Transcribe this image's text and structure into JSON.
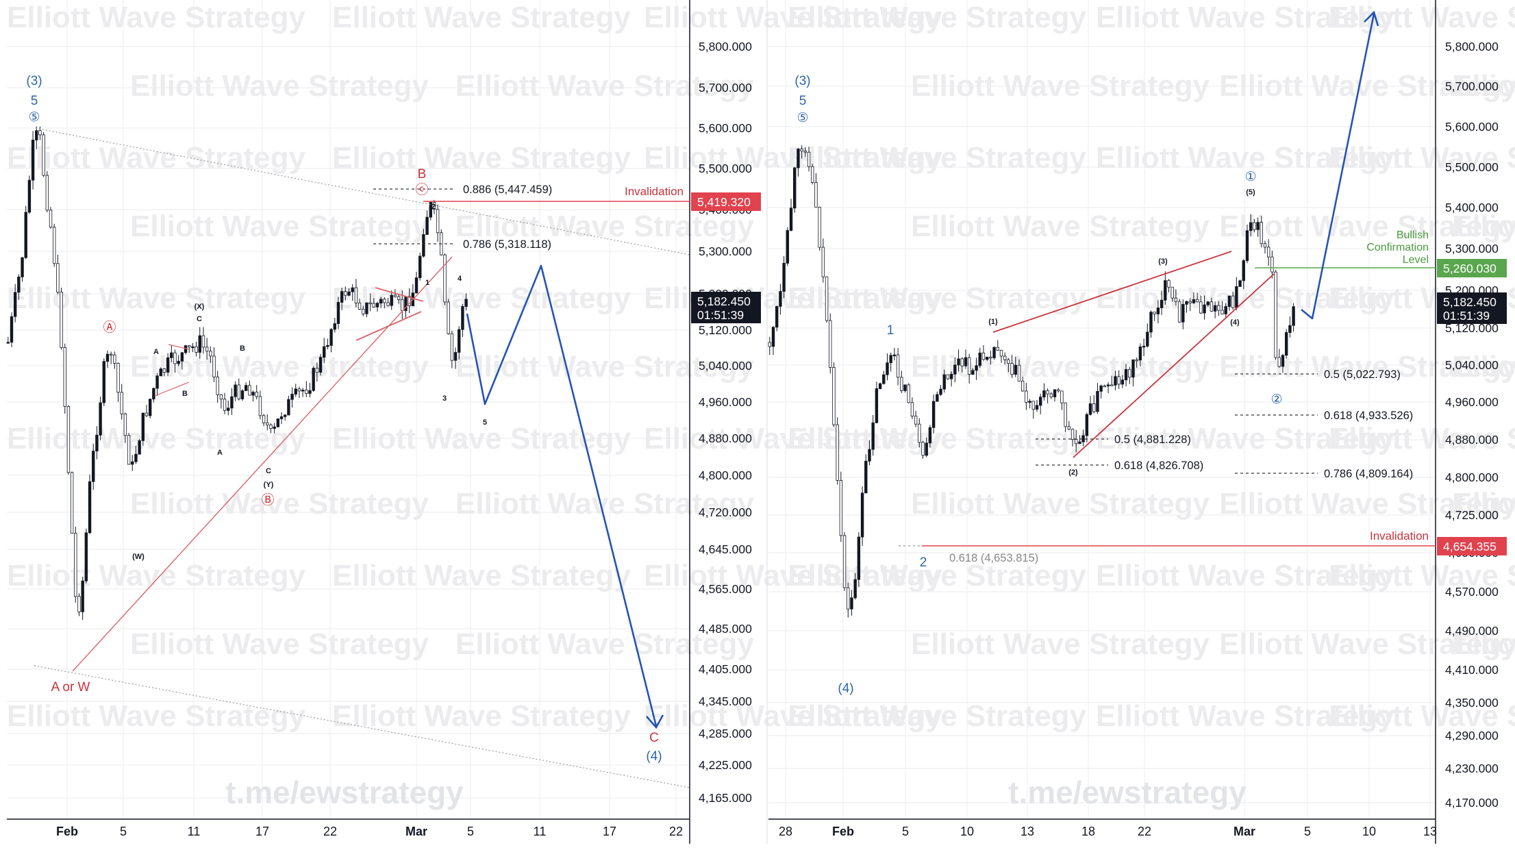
{
  "watermarks": {
    "brand": "Elliott Wave Strategy",
    "channel": "t.me/ewstrategy"
  },
  "colors": {
    "wave_blue": "#2c67a8",
    "wave_red": "#c9333c",
    "projection": "#2553b5",
    "invalidation": "#e0424e",
    "bullish": "#5aa64e",
    "price_tag": "#131722"
  },
  "chart_data": [
    {
      "type": "candlestick",
      "panel": "left",
      "price_axis_ticks": [
        "5,800.000",
        "5,700.000",
        "5,600.000",
        "5,500.000",
        "5,400.000",
        "5,300.000",
        "5,200.000",
        "5,120.000",
        "5,040.000",
        "4,960.000",
        "4,880.000",
        "4,800.000",
        "4,720.000",
        "4,645.000",
        "4,565.000",
        "4,485.000",
        "4,405.000",
        "4,345.000",
        "4,285.000",
        "4,225.000",
        "4,165.000"
      ],
      "time_axis_ticks": [
        {
          "label": "Feb",
          "bold": true
        },
        {
          "label": "5"
        },
        {
          "label": "11"
        },
        {
          "label": "17"
        },
        {
          "label": "22"
        },
        {
          "label": "Mar",
          "bold": true
        },
        {
          "label": "5"
        },
        {
          "label": "11"
        },
        {
          "label": "17"
        },
        {
          "label": "22"
        }
      ],
      "current_price": {
        "value": "5,182.450",
        "countdown": "01:51:39"
      },
      "invalidation": {
        "label": "Invalidation",
        "value": "5,419.320"
      },
      "fib_levels": [
        {
          "text": "0.886 (5,447.459)"
        },
        {
          "text": "0.786 (5,318.118)"
        }
      ],
      "wave_labels": {
        "top_degree": "(3)",
        "top_5": "5",
        "top_circle5": "⑤",
        "circle_A": "Ⓐ",
        "circle_B": "Ⓑ",
        "circle_C": "ⓒ",
        "B": "B",
        "C": "C",
        "deg4": "(4)",
        "aw": "A or W",
        "w": "(W)",
        "x": "(X)",
        "y": "(Y)",
        "a": "A",
        "b": "B",
        "c": "C",
        "n1": "1",
        "n2": "2",
        "n3": "3",
        "n4": "4",
        "n5": "5"
      },
      "projection_path_prices": [
        5128,
        4960,
        5265,
        4300
      ]
    },
    {
      "type": "candlestick",
      "panel": "right",
      "price_axis_ticks": [
        "5,800.000",
        "5,700.000",
        "5,600.000",
        "5,500.000",
        "5,400.000",
        "5,300.000",
        "5,200.000",
        "5,120.000",
        "5,040.000",
        "4,960.000",
        "4,880.000",
        "4,800.000",
        "4,725.000",
        "4,650.000",
        "4,570.000",
        "4,490.000",
        "4,410.000",
        "4,350.000",
        "4,290.000",
        "4,230.000",
        "4,170.000"
      ],
      "time_axis_ticks": [
        {
          "label": "28"
        },
        {
          "label": "Feb",
          "bold": true
        },
        {
          "label": "5"
        },
        {
          "label": "10"
        },
        {
          "label": "13"
        },
        {
          "label": "18"
        },
        {
          "label": "22"
        },
        {
          "label": "Mar",
          "bold": true
        },
        {
          "label": "5"
        },
        {
          "label": "10"
        },
        {
          "label": "13"
        }
      ],
      "current_price": {
        "value": "5,182.450",
        "countdown": "01:51:39"
      },
      "invalidation": {
        "label": "Invalidation",
        "value": "4,654.355"
      },
      "bullish_confirmation": {
        "label_lines": [
          "Bullish",
          "Confirmation",
          "Level"
        ],
        "value": "5,260.030"
      },
      "fib_levels": [
        {
          "text": "0.5 (4,881.228)"
        },
        {
          "text": "0.618 (4,826.708)"
        },
        {
          "text": "0.5 (5,022.793)"
        },
        {
          "text": "0.618 (4,933.526)"
        },
        {
          "text": "0.786 (4,809.164)"
        },
        {
          "text": "0.618 (4,653.815)"
        }
      ],
      "wave_labels": {
        "top_degree": "(3)",
        "top_5": "5",
        "top_circle5": "⑤",
        "w1": "1",
        "w2": "2",
        "deg4": "(4)",
        "s1": "(1)",
        "s2": "(2)",
        "s3": "(3)",
        "s4": "(4)",
        "s5": "(5)",
        "circle1": "①",
        "circle2": "②"
      },
      "projection_path_prices": [
        5180,
        5880
      ]
    }
  ]
}
